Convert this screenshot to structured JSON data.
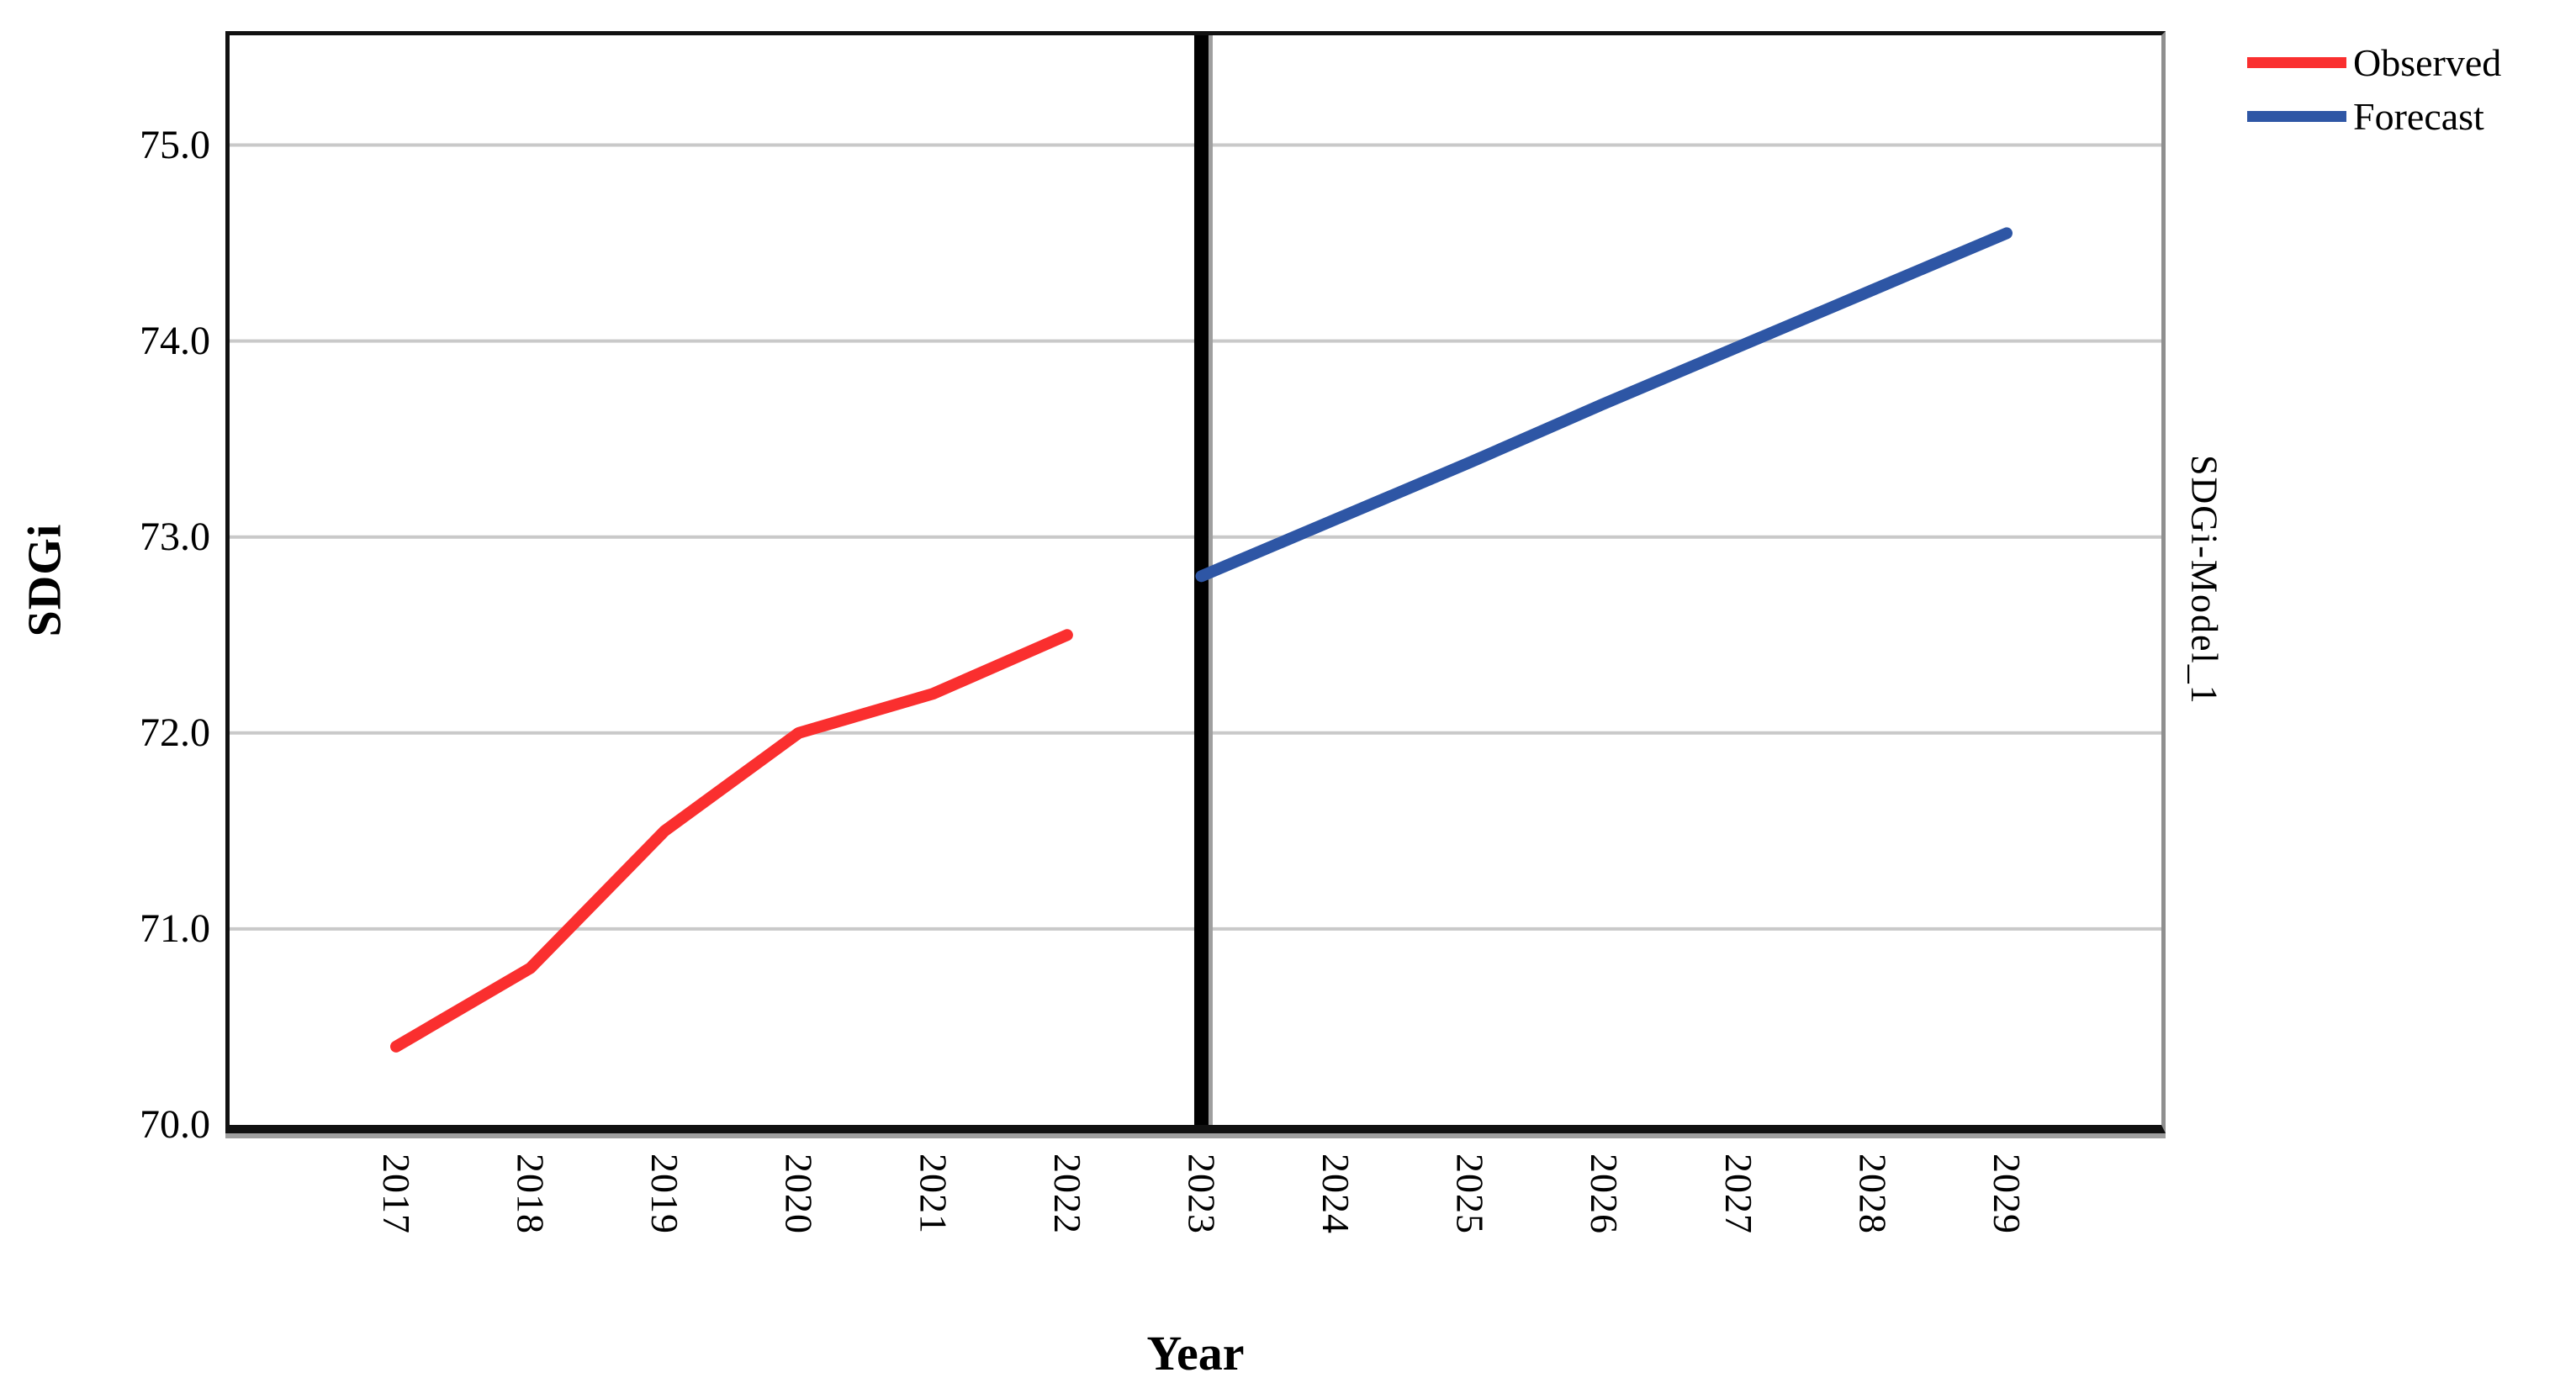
{
  "figure": {
    "y_axis_title": "SDGi",
    "x_axis_title": "Year",
    "right_label": "SDGi-Model_1"
  },
  "legend": {
    "items": [
      {
        "label": "Observed"
      },
      {
        "label": "Forecast"
      }
    ]
  },
  "chart_data": {
    "type": "line",
    "title": "",
    "xlabel": "Year",
    "ylabel": "SDGi",
    "right_axis_label": "SDGi-Model_1",
    "x": [
      2017,
      2018,
      2019,
      2020,
      2021,
      2022,
      2023,
      2024,
      2025,
      2026,
      2027,
      2028,
      2029
    ],
    "series": [
      {
        "name": "Observed",
        "color": "#fa2f2f",
        "x": [
          2017,
          2018,
          2019,
          2020,
          2021,
          2022
        ],
        "values": [
          70.4,
          70.8,
          71.5,
          72.0,
          72.2,
          72.5
        ]
      },
      {
        "name": "Forecast",
        "color": "#2e56a5",
        "x": [
          2023,
          2024,
          2025,
          2026,
          2027,
          2028,
          2029
        ],
        "values": [
          72.8,
          73.09,
          73.38,
          73.68,
          73.97,
          74.26,
          74.55
        ]
      }
    ],
    "ylim": [
      70.0,
      75.56
    ],
    "yticks": [
      {
        "value": 70.0,
        "label": "70.0"
      },
      {
        "value": 71.0,
        "label": "71.0"
      },
      {
        "value": 72.0,
        "label": "72.0"
      },
      {
        "value": 73.0,
        "label": "73.0"
      },
      {
        "value": 74.0,
        "label": "74.0"
      },
      {
        "value": 75.0,
        "label": "75.0"
      }
    ],
    "reference_line_x": 2023,
    "grid": "horizontal",
    "gridline_color": "#c9c9c9",
    "reference_line_color": "#000000",
    "legend_position": "top-right-outside"
  }
}
